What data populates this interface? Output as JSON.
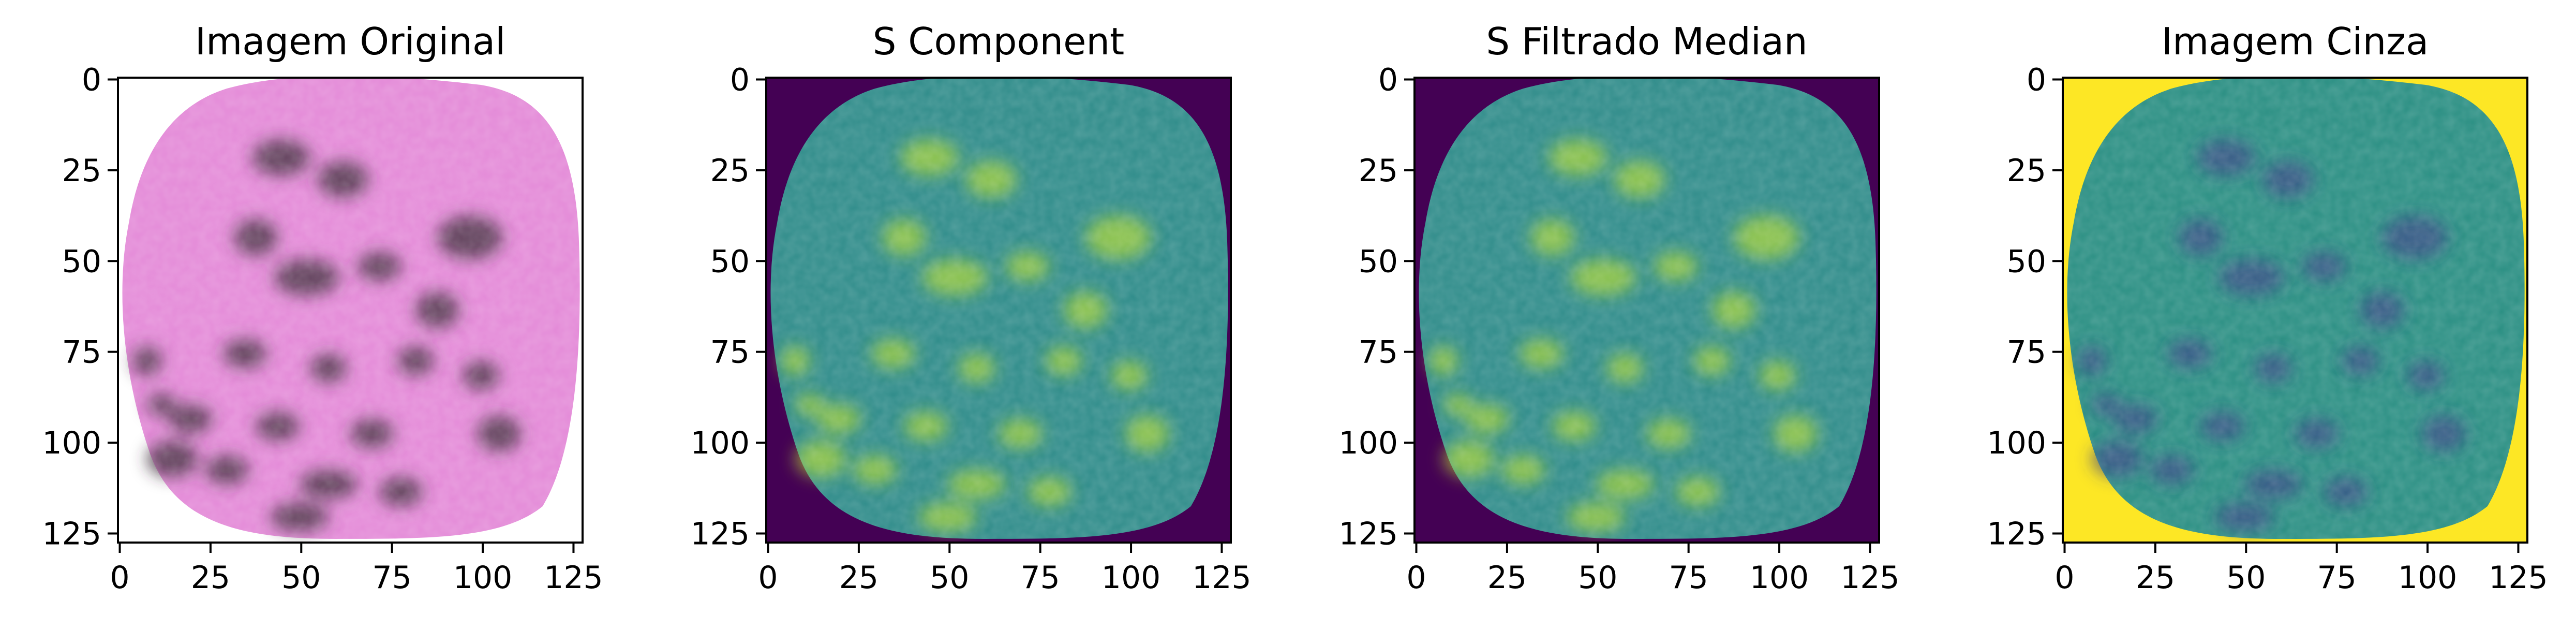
{
  "panels": [
    {
      "title": "Imagem Original",
      "image_kind": "rgb",
      "base_color": "#e48ad8",
      "blob_color": "#3b2a38",
      "outside_color": "#ffffff"
    },
    {
      "title": "S Component",
      "image_kind": "viridis",
      "base_color": "#2f8c8a",
      "blob_color": "#b8dd2a",
      "outside_color": "#440154"
    },
    {
      "title": "S Filtrado Median",
      "image_kind": "viridis",
      "base_color": "#2f8c8a",
      "blob_color": "#b8dd2a",
      "outside_color": "#440154"
    },
    {
      "title": "Imagem Cinza",
      "image_kind": "viridis",
      "base_color": "#2a8f83",
      "blob_color": "#3a3f86",
      "outside_color": "#fde725"
    }
  ],
  "axes": {
    "x_ticks": [
      "0",
      "25",
      "50",
      "75",
      "100",
      "125"
    ],
    "y_ticks": [
      "0",
      "25",
      "50",
      "75",
      "100",
      "125"
    ],
    "range": [
      0,
      128
    ]
  }
}
